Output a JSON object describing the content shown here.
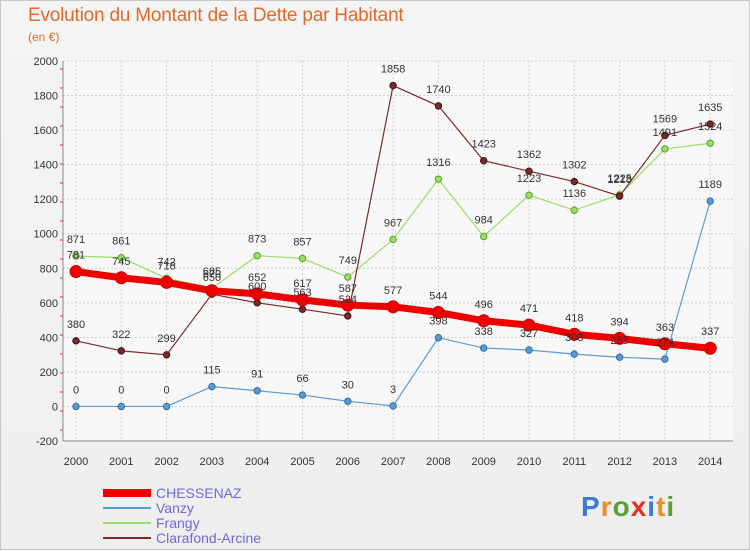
{
  "title": "Evolution du Montant de la Dette par Habitant",
  "subtitle": "(en €)",
  "logo": "Proxiti",
  "colors": {
    "title": "#e06a2a",
    "legend_text": "#6b6bd0"
  },
  "chart_data": {
    "type": "line",
    "categories": [
      "2000",
      "2001",
      "2002",
      "2003",
      "2004",
      "2005",
      "2006",
      "2007",
      "2008",
      "2009",
      "2010",
      "2011",
      "2012",
      "2013",
      "2014"
    ],
    "ylim": [
      -200,
      2000
    ],
    "yticks": [
      -200,
      0,
      200,
      400,
      600,
      800,
      1000,
      1200,
      1400,
      1600,
      1800,
      2000
    ],
    "grid": true,
    "legend_position": "bottom-left",
    "series": [
      {
        "name": "CHESSENAZ",
        "color": "#ee0000",
        "values": [
          781,
          745,
          718,
          670,
          652,
          617,
          587,
          577,
          544,
          496,
          471,
          418,
          394,
          363,
          337
        ]
      },
      {
        "name": "Vanzy",
        "color": "#5a9bd0",
        "values": [
          0,
          0,
          0,
          115,
          91,
          66,
          30,
          3,
          398,
          338,
          327,
          303,
          285,
          274,
          1189
        ]
      },
      {
        "name": "Frangy",
        "color": "#99dd66",
        "values": [
          871,
          861,
          742,
          685,
          873,
          857,
          749,
          967,
          1316,
          984,
          1223,
          1136,
          1225,
          1491,
          1524
        ]
      },
      {
        "name": "Clarafond-Arcine",
        "color": "#7a2a2a",
        "values": [
          380,
          322,
          299,
          650,
          600,
          563,
          524,
          1858,
          1740,
          1423,
          1362,
          1302,
          1218,
          1569,
          1635
        ]
      }
    ],
    "data_labels": [
      {
        "series": 0,
        "labels": [
          "781",
          "745",
          "718",
          "670",
          "652",
          "617",
          "587",
          "577",
          "544",
          "496",
          "471",
          "418",
          "394",
          "363",
          "337"
        ]
      },
      {
        "series": 1,
        "labels": [
          "0",
          "0",
          "0",
          "115",
          "91",
          "66",
          "30",
          "3",
          "398",
          "338",
          "327",
          "303",
          "285",
          "274",
          "1189"
        ]
      },
      {
        "series": 2,
        "labels": [
          "871",
          "861",
          "742",
          "685",
          "873",
          "857",
          "749",
          "967",
          "1316",
          "984",
          "1223",
          "1136",
          "1225",
          "1491",
          "1524"
        ]
      },
      {
        "series": 3,
        "labels": [
          "380",
          "322",
          "299",
          "650",
          "600",
          "563",
          "524",
          "1858",
          "1740",
          "1423",
          "1362",
          "1302",
          "1218",
          "1569",
          "1635"
        ]
      }
    ]
  }
}
